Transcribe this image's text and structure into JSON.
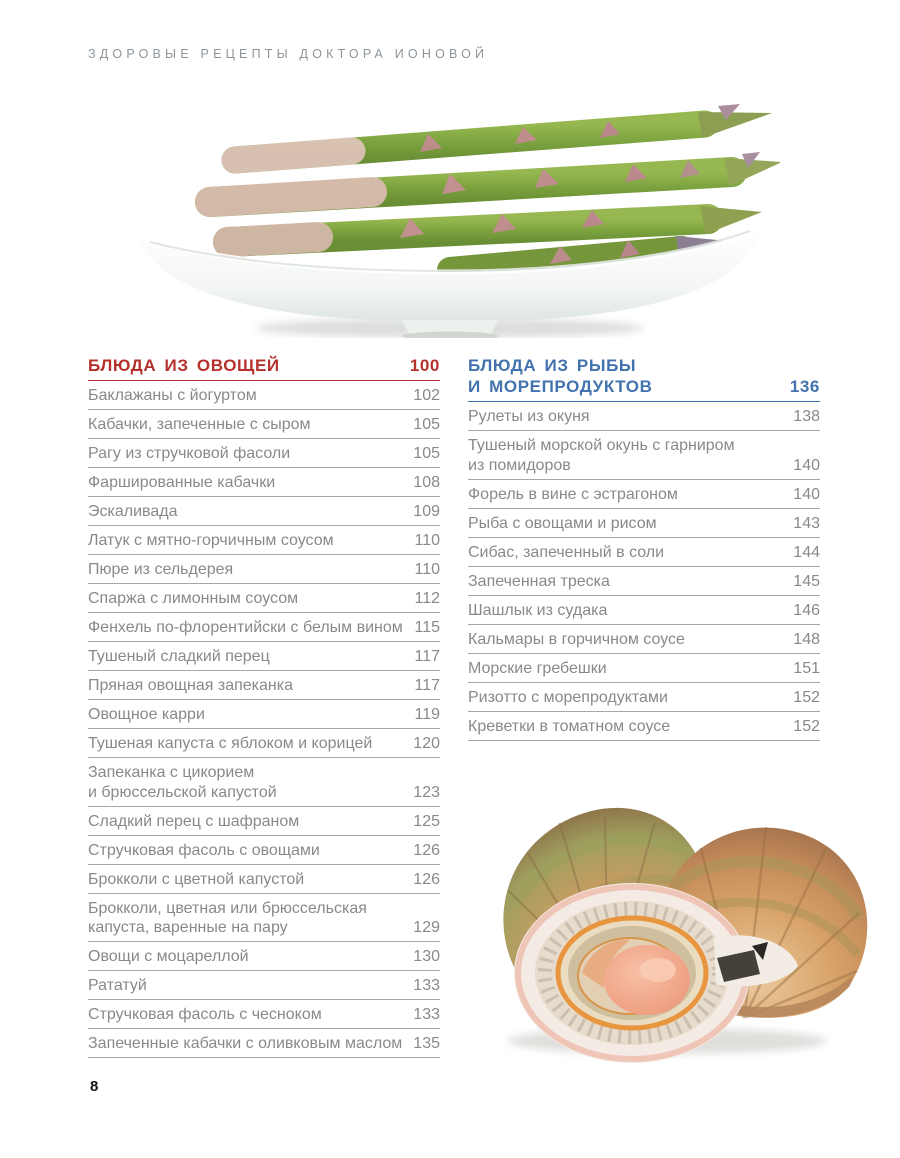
{
  "page": {
    "running_header": "ЗДОРОВЫЕ РЕЦЕПТЫ ДОКТОРА ИОНОВОЙ",
    "page_number": "8"
  },
  "colors": {
    "accent_red": "#b5322c",
    "accent_blue": "#4273ae",
    "item_text": "#87898c",
    "rule_gray": "#a6a8aa",
    "running_header_gray": "#8d959c"
  },
  "images": {
    "top_photo": "asparagus-spears-on-white-boat-dish",
    "bottom_photo": "open-and-closed-scallop-shells"
  },
  "toc": {
    "sections": [
      {
        "id": "vegetables",
        "title_lines": [
          "БЛЮДА ИЗ ОВОЩЕЙ"
        ],
        "page": "100",
        "items": [
          {
            "title": "Баклажаны с йогуртом",
            "page": "102"
          },
          {
            "title": "Кабачки, запеченные с сыром",
            "page": "105"
          },
          {
            "title": "Рагу из стручковой фасоли",
            "page": "105"
          },
          {
            "title": "Фаршированные кабачки",
            "page": "108"
          },
          {
            "title": "Эскаливада",
            "page": "109"
          },
          {
            "title": "Латук с мятно-горчичным соусом",
            "page": "110"
          },
          {
            "title": "Пюре из сельдерея",
            "page": "110"
          },
          {
            "title": "Спаржа с лимонным соусом",
            "page": "112"
          },
          {
            "title": "Фенхель по-флорентийски с белым вином",
            "page": "115"
          },
          {
            "title": "Тушеный сладкий перец",
            "page": "117"
          },
          {
            "title": "Пряная овощная запеканка",
            "page": "117"
          },
          {
            "title": "Овощное карри",
            "page": "119"
          },
          {
            "title": "Тушеная капуста с яблоком и корицей",
            "page": "120"
          },
          {
            "title": "Запеканка с цикорием",
            "title2": "и брюссельской капустой",
            "page": "123"
          },
          {
            "title": "Сладкий перец с шафраном",
            "page": "125"
          },
          {
            "title": "Стручковая фасоль с овощами",
            "page": "126"
          },
          {
            "title": "Брокколи с цветной капустой",
            "page": "126"
          },
          {
            "title": "Брокколи, цветная или брюссельская",
            "title2": "капуста, варенные на пару",
            "page": "129"
          },
          {
            "title": "Овощи с моцареллой",
            "page": "130"
          },
          {
            "title": "Рататуй",
            "page": "133"
          },
          {
            "title": "Стручковая фасоль с чесноком",
            "page": "133"
          },
          {
            "title": "Запеченные кабачки с оливковым маслом",
            "page": "135"
          }
        ]
      },
      {
        "id": "fish-seafood",
        "title_lines": [
          "БЛЮДА ИЗ РЫБЫ",
          "И МОРЕПРОДУКТОВ"
        ],
        "page": "136",
        "items": [
          {
            "title": "Рулеты из окуня",
            "page": "138"
          },
          {
            "title": "Тушеный морской окунь с гарниром",
            "title2": "из помидоров",
            "page": "140"
          },
          {
            "title": "Форель в вине с эстрагоном",
            "page": "140"
          },
          {
            "title": "Рыба с овощами и рисом",
            "page": "143"
          },
          {
            "title": "Сибас, запеченный в соли",
            "page": "144"
          },
          {
            "title": "Запеченная треска",
            "page": "145"
          },
          {
            "title": "Шашлык из судака",
            "page": "146"
          },
          {
            "title": "Кальмары в горчичном соусе",
            "page": "148"
          },
          {
            "title": "Морские гребешки",
            "page": "151"
          },
          {
            "title": "Ризотто с морепродуктами",
            "page": "152"
          },
          {
            "title": "Креветки в томатном соусе",
            "page": "152"
          }
        ]
      }
    ]
  }
}
